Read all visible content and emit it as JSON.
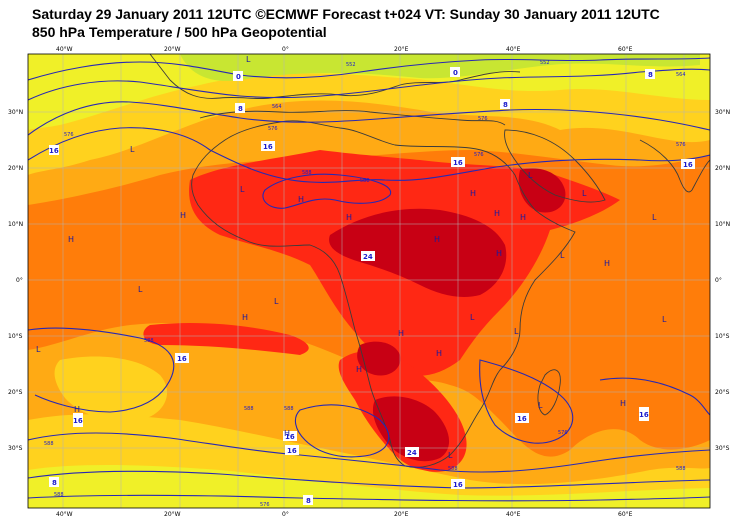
{
  "title_line1": "Saturday 29 January 2011 12UTC ©ECMWF Forecast t+024 VT: Sunday 30 January 2011 12UTC",
  "title_line2": "850 hPa Temperature / 500 hPa Geopotential",
  "colors": {
    "t_lt4": "#c8e632",
    "t_4_8": "#f0f028",
    "t_8_12": "#ffd21e",
    "t_12_16": "#ffaa14",
    "t_16_20": "#ff7d0a",
    "t_20_24": "#ff2814",
    "t_gt24": "#c80014",
    "contour": "#2828b4",
    "coast": "#3c3c3c",
    "grid": "#b4b4b4"
  },
  "lon_ticks": [
    "40°W",
    "20°W",
    "0°",
    "20°E",
    "40°E",
    "60°E"
  ],
  "lat_ticks_left": [
    "30°N",
    "20°N",
    "10°N",
    "0°",
    "10°S",
    "20°S",
    "30°S"
  ],
  "lat_ticks_right": [
    "30°N",
    "20°N",
    "10°N",
    "0°",
    "10°S",
    "20°S",
    "30°S"
  ],
  "temp_labels": [
    "0",
    "0",
    "8",
    "8",
    "8",
    "16",
    "16",
    "16",
    "16",
    "16",
    "24",
    "24",
    "16",
    "16",
    "16",
    "16",
    "8",
    "8",
    "16",
    "16"
  ],
  "height_labels": [
    "552",
    "552",
    "564",
    "564",
    "576",
    "576",
    "576",
    "588",
    "588",
    "588",
    "588",
    "588",
    "576",
    "588",
    "588",
    "576",
    "588",
    "576",
    "588",
    "576"
  ],
  "pressure_centres": [
    "L",
    "L",
    "L",
    "H",
    "H",
    "H",
    "L",
    "L",
    "H",
    "H",
    "H",
    "H",
    "H",
    "L",
    "L",
    "H",
    "L",
    "H",
    "L",
    "L",
    "H",
    "H",
    "H",
    "L",
    "H",
    "H",
    "L",
    "H",
    "L",
    "H",
    "L",
    "L"
  ]
}
